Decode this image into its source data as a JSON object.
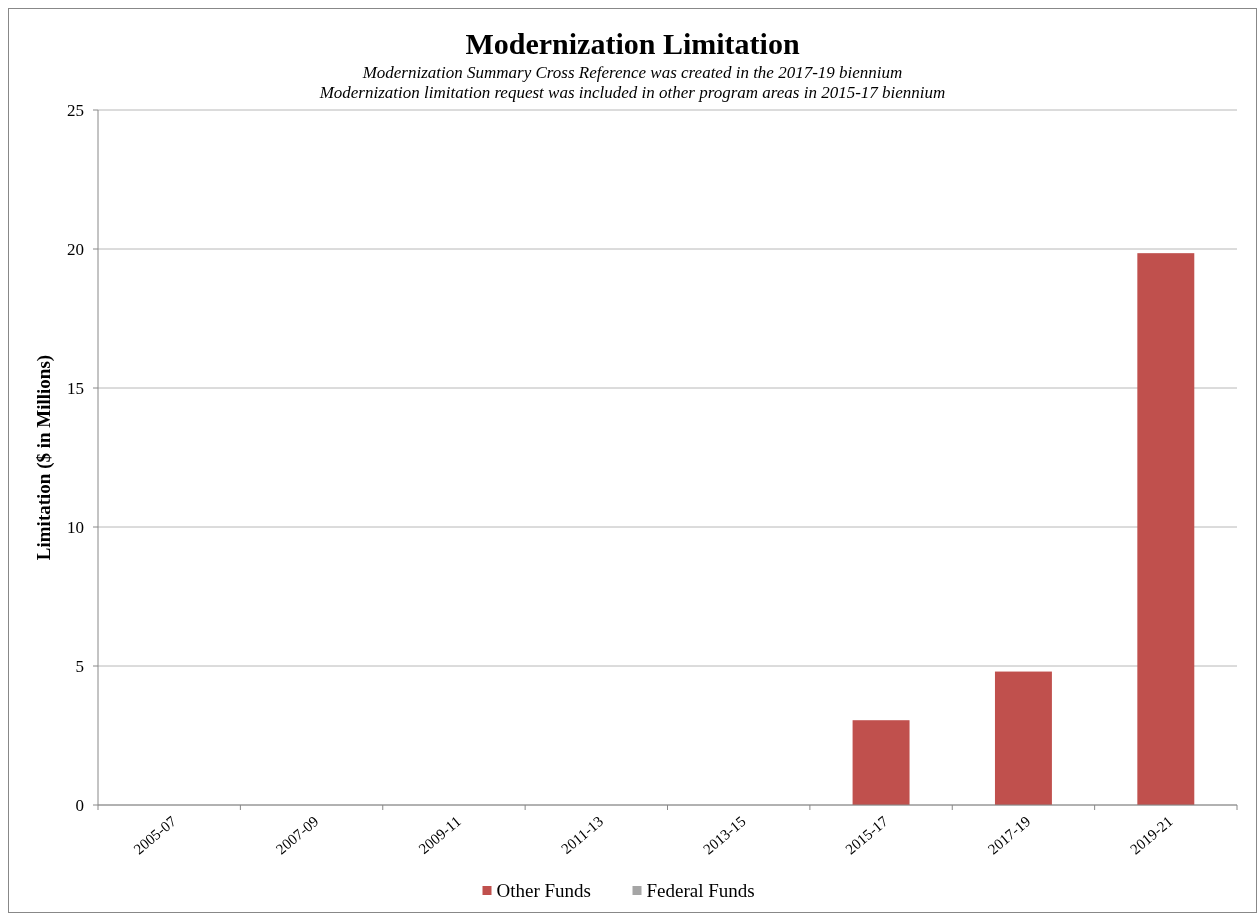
{
  "chart_data": {
    "type": "bar",
    "title": "Modernization Limitation",
    "subtitle": "Modernization Summary Cross Reference was created in the 2017-19 biennium\nModernization limitation request was included in other program areas in 2015-17 biennium",
    "ylabel": "Limitation ($ in Millions)",
    "categories": [
      "2005-07",
      "2007-09",
      "2009-11",
      "2011-13",
      "2013-15",
      "2015-17",
      "2017-19",
      "2019-21"
    ],
    "series": [
      {
        "name": "Other Funds",
        "color": "#c0504d",
        "values": [
          0,
          0,
          0,
          0,
          0,
          3.05,
          4.8,
          19.85
        ]
      },
      {
        "name": "Federal Funds",
        "color": "#a5a5a5",
        "values": [
          0,
          0,
          0,
          0,
          0,
          0,
          0,
          0
        ]
      }
    ],
    "stacked": true,
    "ylim": [
      0,
      25
    ],
    "yticks": [
      0,
      5,
      10,
      15,
      20,
      25
    ],
    "grid": "y",
    "legend": "bottom"
  }
}
